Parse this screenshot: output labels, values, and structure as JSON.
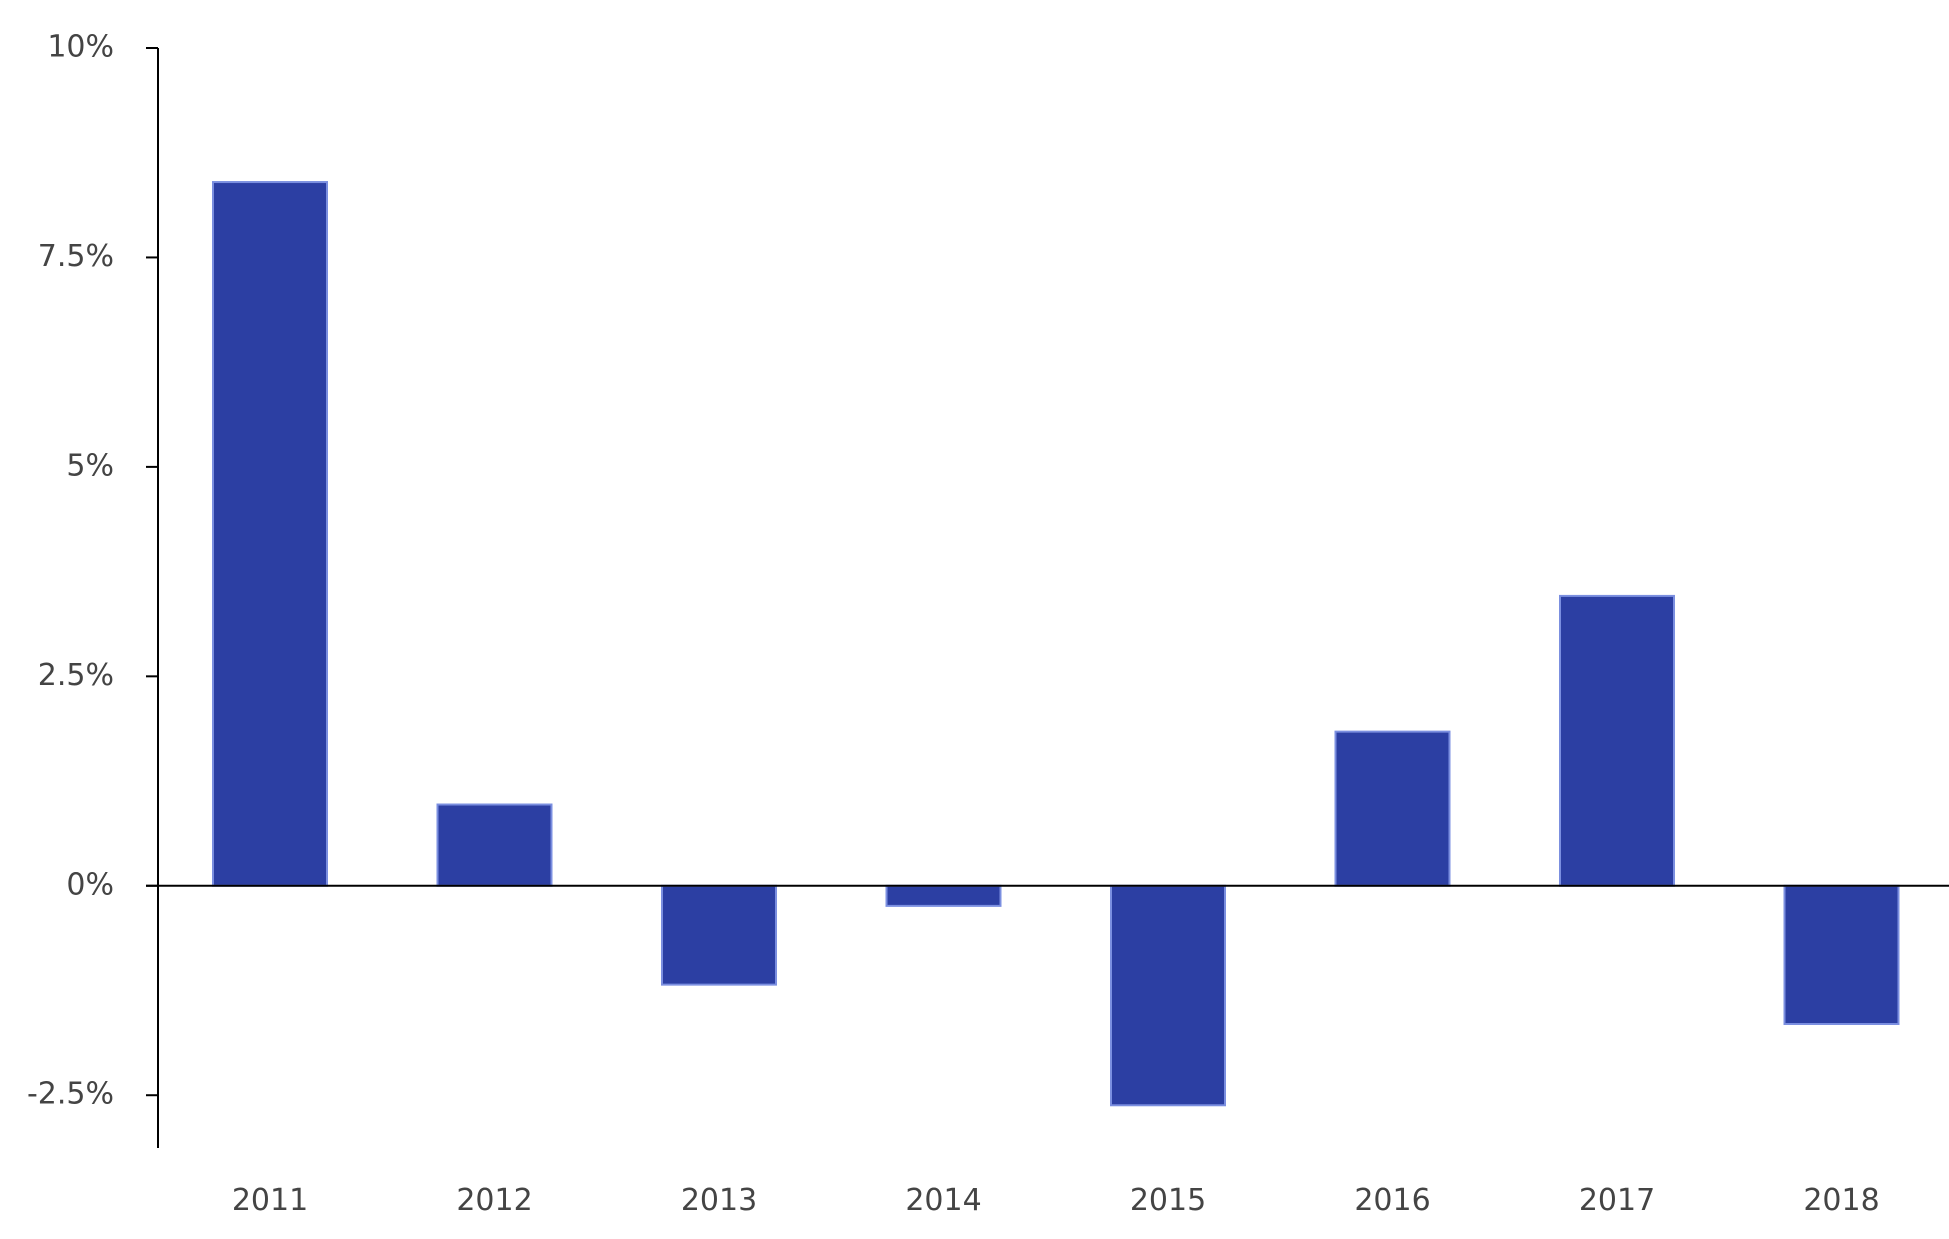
{
  "chart_data": {
    "type": "bar",
    "title": "",
    "xlabel": "",
    "ylabel": "",
    "categories": [
      "2011",
      "2012",
      "2013",
      "2014",
      "2015",
      "2016",
      "2017",
      "2018"
    ],
    "series": [
      {
        "values": [
          8.4,
          0.97,
          -1.18,
          -0.24,
          -2.62,
          1.84,
          3.46,
          -1.65
        ]
      }
    ],
    "ylim": [
      -3.13,
      10
    ],
    "yticks": [
      10,
      7.5,
      5,
      2.5,
      0,
      -2.5
    ],
    "ytick_labels": [
      "10%",
      "7.5%",
      "5%",
      "2.5%",
      "0%",
      "-2.5%"
    ],
    "grid": false,
    "legend": "none",
    "colors": {
      "bar": "#2c3fa3",
      "bar_edge": "#7b8fe0",
      "axis": "#000000",
      "text": "#444444"
    }
  }
}
